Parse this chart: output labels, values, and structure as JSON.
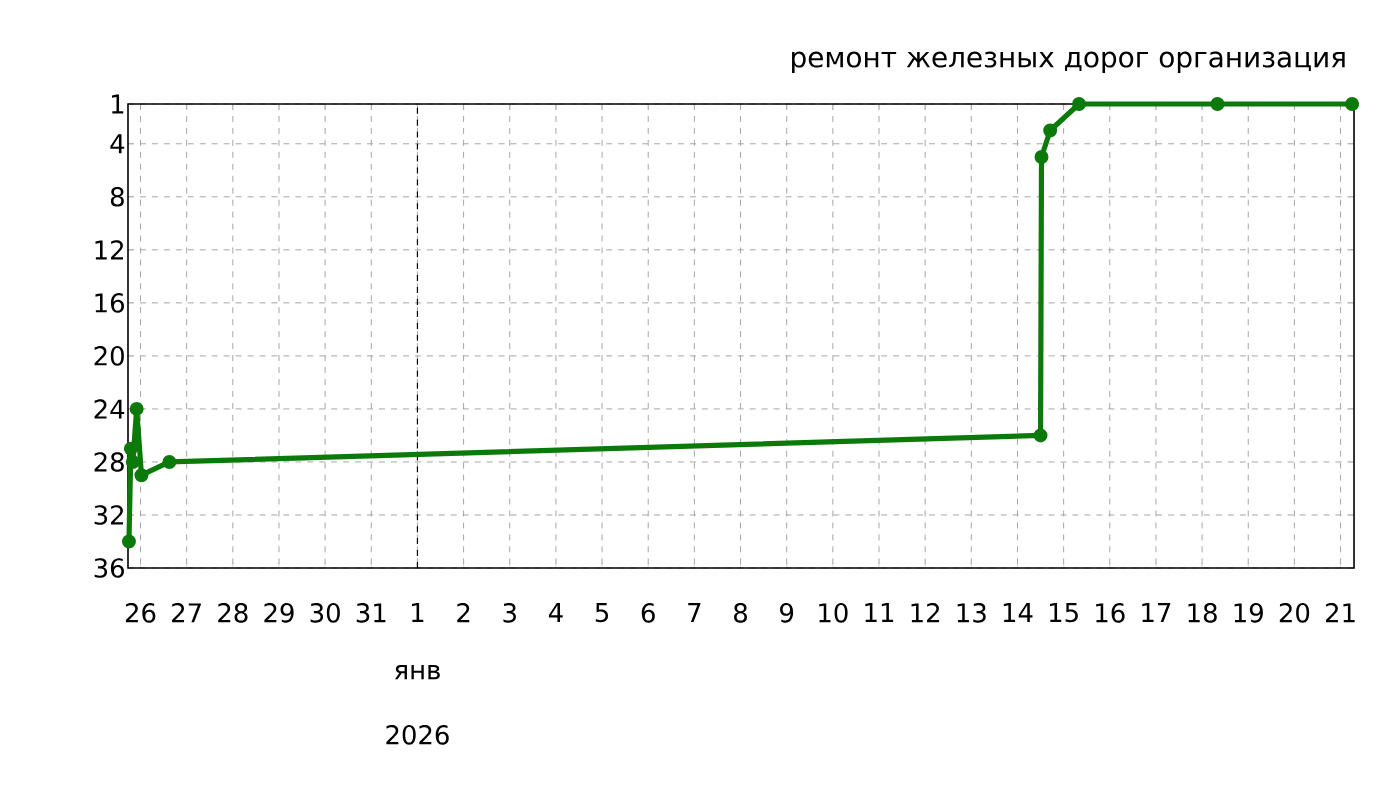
{
  "chart_data": {
    "type": "line",
    "title": "ремонт железных дорог организация",
    "x": [
      "2025-12-25T18:00",
      "2025-12-25T19:00",
      "2025-12-25T20:00",
      "2025-12-25T22:00",
      "2025-12-26T00:30",
      "2025-12-26T15:00",
      "2026-01-14T12:00",
      "2026-01-14T12:30",
      "2026-01-14T17:00",
      "2026-01-15T08:00",
      "2026-01-18T08:00",
      "2026-01-21T06:00"
    ],
    "series": [
      {
        "color": "#0b7a0b",
        "values": [
          34,
          27,
          28,
          24,
          29,
          28,
          26,
          5,
          3,
          1,
          1,
          1
        ]
      }
    ],
    "xlim": [
      "2025-12-25T17:30",
      "2026-01-21T07:00"
    ],
    "xticks": [
      {
        "value": "2025-12-26",
        "label": "26"
      },
      {
        "value": "2025-12-27",
        "label": "27"
      },
      {
        "value": "2025-12-28",
        "label": "28"
      },
      {
        "value": "2025-12-29",
        "label": "29"
      },
      {
        "value": "2025-12-30",
        "label": "30"
      },
      {
        "value": "2025-12-31",
        "label": "31"
      },
      {
        "value": "2026-01-01",
        "label": "1"
      },
      {
        "value": "2026-01-02",
        "label": "2"
      },
      {
        "value": "2026-01-03",
        "label": "3"
      },
      {
        "value": "2026-01-04",
        "label": "4"
      },
      {
        "value": "2026-01-05",
        "label": "5"
      },
      {
        "value": "2026-01-06",
        "label": "6"
      },
      {
        "value": "2026-01-07",
        "label": "7"
      },
      {
        "value": "2026-01-08",
        "label": "8"
      },
      {
        "value": "2026-01-09",
        "label": "9"
      },
      {
        "value": "2026-01-10",
        "label": "10"
      },
      {
        "value": "2026-01-11",
        "label": "11"
      },
      {
        "value": "2026-01-12",
        "label": "12"
      },
      {
        "value": "2026-01-13",
        "label": "13"
      },
      {
        "value": "2026-01-14",
        "label": "14"
      },
      {
        "value": "2026-01-15",
        "label": "15"
      },
      {
        "value": "2026-01-16",
        "label": "16"
      },
      {
        "value": "2026-01-17",
        "label": "17"
      },
      {
        "value": "2026-01-18",
        "label": "18"
      },
      {
        "value": "2026-01-19",
        "label": "19"
      },
      {
        "value": "2026-01-20",
        "label": "20"
      },
      {
        "value": "2026-01-21",
        "label": "21"
      }
    ],
    "ylim": [
      36,
      1
    ],
    "yticks": [
      1,
      4,
      8,
      12,
      16,
      20,
      24,
      28,
      32,
      36
    ],
    "ref_lines": [
      {
        "axis": "x",
        "value": "2026-01-01",
        "color": "#000000",
        "line_style": "dashed"
      }
    ],
    "annotations": [
      "янв",
      "2026"
    ],
    "grid": true,
    "marker": "circle",
    "line_style": "solid"
  }
}
